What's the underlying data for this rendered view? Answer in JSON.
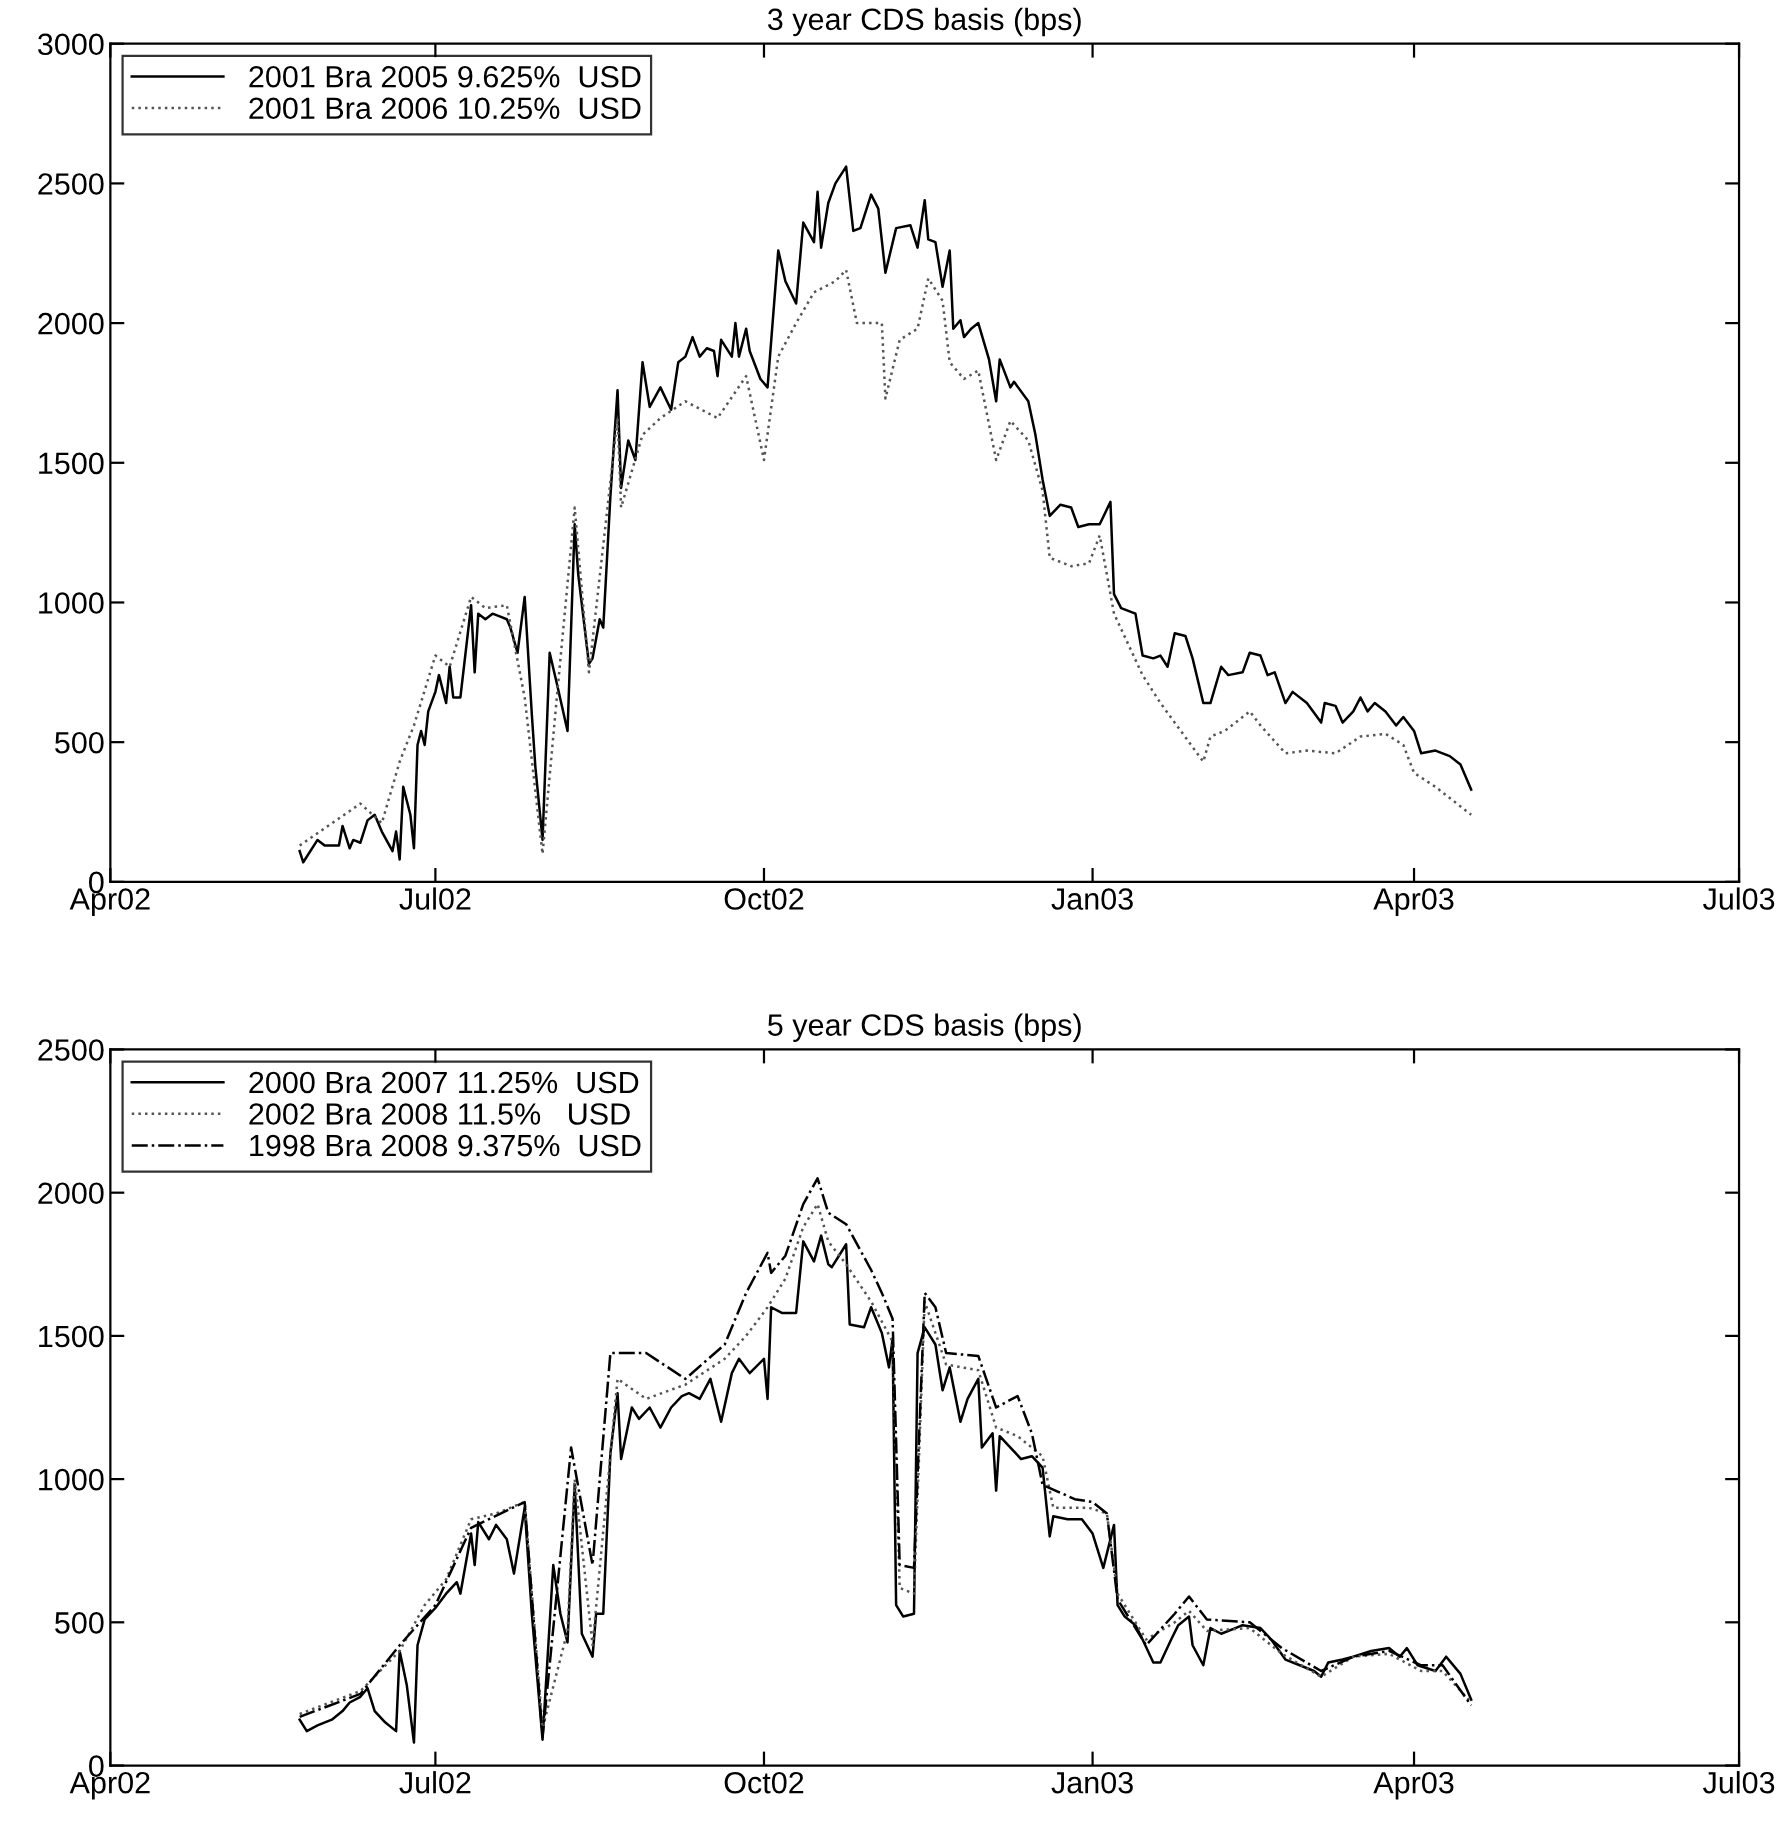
{
  "chart_data": [
    {
      "type": "line",
      "title": "3 year CDS basis (bps)",
      "legend": "top left",
      "grid": false,
      "xlim": [
        "2002-04-01",
        "2003-07-01"
      ],
      "xticks": [
        {
          "value": "2002-04-01",
          "label": "Apr02"
        },
        {
          "value": "2002-07-01",
          "label": "Jul02"
        },
        {
          "value": "2002-10-01",
          "label": "Oct02"
        },
        {
          "value": "2003-01-01",
          "label": "Jan03"
        },
        {
          "value": "2003-04-01",
          "label": "Apr03"
        },
        {
          "value": "2003-07-01",
          "label": "Jul03"
        }
      ],
      "ylim": [
        0,
        3000
      ],
      "yticks": [
        0,
        500,
        1000,
        1500,
        2000,
        2500,
        3000
      ],
      "series": [
        {
          "name": "2001 Bra 2005 9.625%  USD",
          "color": "#000000",
          "line_style": "solid",
          "x": [
            "2002-05-24",
            "2002-05-25",
            "2002-05-29",
            "2002-05-31",
            "2002-06-04",
            "2002-06-05",
            "2002-06-07",
            "2002-06-08",
            "2002-06-10",
            "2002-06-12",
            "2002-06-14",
            "2002-06-16",
            "2002-06-19",
            "2002-06-20",
            "2002-06-21",
            "2002-06-22",
            "2002-06-24",
            "2002-06-25",
            "2002-06-26",
            "2002-06-27",
            "2002-06-28",
            "2002-06-29",
            "2002-07-01",
            "2002-07-02",
            "2002-07-04",
            "2002-07-05",
            "2002-07-06",
            "2002-07-08",
            "2002-07-11",
            "2002-07-12",
            "2002-07-13",
            "2002-07-15",
            "2002-07-17",
            "2002-07-19",
            "2002-07-21",
            "2002-07-22",
            "2002-07-24",
            "2002-07-26",
            "2002-07-28",
            "2002-07-29",
            "2002-07-31",
            "2002-08-02",
            "2002-08-04",
            "2002-08-07",
            "2002-08-09",
            "2002-08-10",
            "2002-08-13",
            "2002-08-14",
            "2002-08-16",
            "2002-08-17",
            "2002-08-19",
            "2002-08-21",
            "2002-08-22",
            "2002-08-24",
            "2002-08-26",
            "2002-08-28",
            "2002-08-30",
            "2002-09-02",
            "2002-09-05",
            "2002-09-07",
            "2002-09-09",
            "2002-09-11",
            "2002-09-13",
            "2002-09-15",
            "2002-09-17",
            "2002-09-18",
            "2002-09-19",
            "2002-09-22",
            "2002-09-23",
            "2002-09-24",
            "2002-09-26",
            "2002-09-27",
            "2002-09-30",
            "2002-10-02",
            "2002-10-05",
            "2002-10-07",
            "2002-10-10",
            "2002-10-12",
            "2002-10-15",
            "2002-10-16",
            "2002-10-17",
            "2002-10-19",
            "2002-10-21",
            "2002-10-24",
            "2002-10-26",
            "2002-10-28",
            "2002-10-31",
            "2002-11-02",
            "2002-11-04",
            "2002-11-07",
            "2002-11-11",
            "2002-11-13",
            "2002-11-15",
            "2002-11-16",
            "2002-11-18",
            "2002-11-20",
            "2002-11-22",
            "2002-11-23",
            "2002-11-25",
            "2002-11-26",
            "2002-11-28",
            "2002-11-30",
            "2002-12-03",
            "2002-12-05",
            "2002-12-06",
            "2002-12-09",
            "2002-12-10",
            "2002-12-14",
            "2002-12-16",
            "2002-12-18",
            "2002-12-20",
            "2002-12-23",
            "2002-12-26",
            "2002-12-28",
            "2002-12-31",
            "2003-01-03",
            "2003-01-06",
            "2003-01-07",
            "2003-01-09",
            "2003-01-13",
            "2003-01-15",
            "2003-01-18",
            "2003-01-20",
            "2003-01-22",
            "2003-01-24",
            "2003-01-27",
            "2003-01-29",
            "2003-02-01",
            "2003-02-03",
            "2003-02-06",
            "2003-02-08",
            "2003-02-12",
            "2003-02-14",
            "2003-02-17",
            "2003-02-19",
            "2003-02-21",
            "2003-02-24",
            "2003-02-26",
            "2003-03-02",
            "2003-03-06",
            "2003-03-07",
            "2003-03-10",
            "2003-03-12",
            "2003-03-15",
            "2003-03-17",
            "2003-03-19",
            "2003-03-21",
            "2003-03-24",
            "2003-03-27",
            "2003-03-29",
            "2003-04-01",
            "2003-04-03",
            "2003-04-07",
            "2003-04-11",
            "2003-04-14",
            "2003-04-17"
          ],
          "values": [
            110,
            70,
            150,
            130,
            130,
            200,
            120,
            150,
            140,
            220,
            240,
            180,
            110,
            180,
            80,
            340,
            240,
            120,
            490,
            540,
            490,
            610,
            680,
            740,
            640,
            770,
            660,
            660,
            990,
            750,
            960,
            940,
            960,
            950,
            940,
            910,
            820,
            1020,
            600,
            410,
            150,
            820,
            710,
            540,
            1280,
            1100,
            780,
            800,
            940,
            910,
            1380,
            1760,
            1410,
            1580,
            1510,
            1860,
            1700,
            1770,
            1690,
            1860,
            1880,
            1950,
            1880,
            1910,
            1900,
            1810,
            1940,
            1880,
            2000,
            1880,
            1980,
            1900,
            1800,
            1770,
            2260,
            2150,
            2070,
            2360,
            2290,
            2470,
            2270,
            2430,
            2500,
            2560,
            2330,
            2340,
            2460,
            2410,
            2180,
            2340,
            2350,
            2270,
            2440,
            2300,
            2290,
            2130,
            2260,
            1980,
            2010,
            1950,
            1980,
            2000,
            1870,
            1720,
            1870,
            1770,
            1790,
            1720,
            1600,
            1440,
            1310,
            1350,
            1340,
            1270,
            1280,
            1280,
            1360,
            1030,
            980,
            960,
            810,
            800,
            810,
            770,
            890,
            880,
            800,
            640,
            640,
            770,
            740,
            750,
            820,
            810,
            740,
            750,
            640,
            680,
            640,
            570,
            640,
            630,
            570,
            610,
            660,
            610,
            640,
            610,
            560,
            590,
            540,
            460,
            470,
            450,
            420,
            330
          ]
        },
        {
          "name": "2001 Bra 2006 10.25%  USD",
          "color": "#555555",
          "line_style": "dotted",
          "x": [
            "2002-05-24",
            "2002-06-10",
            "2002-06-16",
            "2002-06-21",
            "2002-06-25",
            "2002-07-01",
            "2002-07-05",
            "2002-07-11",
            "2002-07-15",
            "2002-07-21",
            "2002-07-26",
            "2002-07-31",
            "2002-08-04",
            "2002-08-09",
            "2002-08-13",
            "2002-08-21",
            "2002-08-22",
            "2002-08-28",
            "2002-09-02",
            "2002-09-09",
            "2002-09-18",
            "2002-09-26",
            "2002-10-01",
            "2002-10-05",
            "2002-10-10",
            "2002-10-15",
            "2002-10-21",
            "2002-10-24",
            "2002-10-27",
            "2002-11-03",
            "2002-11-04",
            "2002-11-08",
            "2002-11-13",
            "2002-11-16",
            "2002-11-20",
            "2002-11-22",
            "2002-11-26",
            "2002-11-30",
            "2002-12-05",
            "2002-12-09",
            "2002-12-14",
            "2002-12-18",
            "2002-12-20",
            "2002-12-26",
            "2002-12-31",
            "2003-01-03",
            "2003-01-07",
            "2003-01-15",
            "2003-01-20",
            "2003-02-01",
            "2003-02-03",
            "2003-02-07",
            "2003-02-14",
            "2003-02-17",
            "2003-02-24",
            "2003-03-02",
            "2003-03-10",
            "2003-03-17",
            "2003-03-24",
            "2003-03-29",
            "2003-04-01",
            "2003-04-07",
            "2003-04-17"
          ],
          "values": [
            130,
            280,
            210,
            430,
            560,
            810,
            770,
            1020,
            980,
            990,
            660,
            100,
            660,
            1340,
            750,
            1660,
            1340,
            1600,
            1660,
            1720,
            1660,
            1810,
            1510,
            1880,
            2000,
            2110,
            2150,
            2190,
            2000,
            2000,
            1730,
            1940,
            1980,
            2160,
            2080,
            1860,
            1800,
            1830,
            1510,
            1650,
            1580,
            1400,
            1160,
            1130,
            1140,
            1240,
            960,
            740,
            640,
            430,
            520,
            540,
            610,
            560,
            460,
            470,
            460,
            520,
            530,
            490,
            390,
            340,
            240
          ]
        }
      ]
    },
    {
      "type": "line",
      "title": "5 year CDS basis (bps)",
      "legend": "top left",
      "grid": false,
      "xlim": [
        "2002-04-01",
        "2003-07-01"
      ],
      "xticks": [
        {
          "value": "2002-04-01",
          "label": "Apr02"
        },
        {
          "value": "2002-07-01",
          "label": "Jul02"
        },
        {
          "value": "2002-10-01",
          "label": "Oct02"
        },
        {
          "value": "2003-01-01",
          "label": "Jan03"
        },
        {
          "value": "2003-04-01",
          "label": "Apr03"
        },
        {
          "value": "2003-07-01",
          "label": "Jul03"
        }
      ],
      "ylim": [
        0,
        2500
      ],
      "yticks": [
        0,
        500,
        1000,
        1500,
        2000,
        2500
      ],
      "series": [
        {
          "name": "2000 Bra 2007 11.25%  USD",
          "color": "#000000",
          "line_style": "solid",
          "x": [
            "2002-05-24",
            "2002-05-26",
            "2002-05-29",
            "2002-06-02",
            "2002-06-05",
            "2002-06-07",
            "2002-06-10",
            "2002-06-12",
            "2002-06-14",
            "2002-06-17",
            "2002-06-20",
            "2002-06-21",
            "2002-06-23",
            "2002-06-25",
            "2002-06-26",
            "2002-06-28",
            "2002-07-01",
            "2002-07-04",
            "2002-07-07",
            "2002-07-08",
            "2002-07-11",
            "2002-07-12",
            "2002-07-13",
            "2002-07-16",
            "2002-07-18",
            "2002-07-21",
            "2002-07-23",
            "2002-07-26",
            "2002-07-28",
            "2002-07-31",
            "2002-08-03",
            "2002-08-05",
            "2002-08-07",
            "2002-08-09",
            "2002-08-11",
            "2002-08-14",
            "2002-08-15",
            "2002-08-17",
            "2002-08-19",
            "2002-08-21",
            "2002-08-22",
            "2002-08-25",
            "2002-08-27",
            "2002-08-30",
            "2002-09-02",
            "2002-09-05",
            "2002-09-08",
            "2002-09-10",
            "2002-09-13",
            "2002-09-16",
            "2002-09-19",
            "2002-09-22",
            "2002-09-24",
            "2002-09-27",
            "2002-10-01",
            "2002-10-02",
            "2002-10-03",
            "2002-10-06",
            "2002-10-10",
            "2002-10-12",
            "2002-10-15",
            "2002-10-17",
            "2002-10-19",
            "2002-10-20",
            "2002-10-24",
            "2002-10-25",
            "2002-10-29",
            "2002-10-31",
            "2002-11-03",
            "2002-11-05",
            "2002-11-06",
            "2002-11-07",
            "2002-11-09",
            "2002-11-12",
            "2002-11-13",
            "2002-11-15",
            "2002-11-18",
            "2002-11-20",
            "2002-11-22",
            "2002-11-25",
            "2002-11-27",
            "2002-11-30",
            "2002-12-01",
            "2002-12-04",
            "2002-12-05",
            "2002-12-06",
            "2002-12-09",
            "2002-12-12",
            "2002-12-15",
            "2002-12-18",
            "2002-12-20",
            "2002-12-21",
            "2002-12-25",
            "2002-12-29",
            "2003-01-01",
            "2003-01-04",
            "2003-01-07",
            "2003-01-08",
            "2003-01-10",
            "2003-01-13",
            "2003-01-15",
            "2003-01-18",
            "2003-01-20",
            "2003-01-23",
            "2003-01-25",
            "2003-01-28",
            "2003-01-29",
            "2003-02-01",
            "2003-02-03",
            "2003-02-06",
            "2003-02-10",
            "2003-02-12",
            "2003-02-17",
            "2003-02-20",
            "2003-02-24",
            "2003-02-28",
            "2003-03-04",
            "2003-03-06",
            "2003-03-08",
            "2003-03-12",
            "2003-03-15",
            "2003-03-20",
            "2003-03-25",
            "2003-03-28",
            "2003-03-30",
            "2003-04-02",
            "2003-04-07",
            "2003-04-10",
            "2003-04-14",
            "2003-04-17"
          ],
          "values": [
            160,
            120,
            140,
            160,
            190,
            220,
            240,
            270,
            190,
            150,
            120,
            400,
            280,
            80,
            420,
            510,
            550,
            600,
            640,
            600,
            810,
            700,
            850,
            790,
            840,
            790,
            670,
            900,
            530,
            90,
            700,
            530,
            430,
            980,
            460,
            380,
            530,
            530,
            1090,
            1300,
            1070,
            1250,
            1210,
            1250,
            1180,
            1250,
            1290,
            1300,
            1280,
            1350,
            1200,
            1370,
            1420,
            1370,
            1420,
            1280,
            1600,
            1580,
            1580,
            1830,
            1760,
            1850,
            1750,
            1740,
            1820,
            1540,
            1530,
            1600,
            1510,
            1390,
            1490,
            560,
            520,
            530,
            1440,
            1530,
            1470,
            1310,
            1390,
            1200,
            1280,
            1350,
            1110,
            1160,
            960,
            1150,
            1110,
            1070,
            1080,
            1040,
            800,
            870,
            860,
            860,
            810,
            690,
            840,
            560,
            520,
            490,
            440,
            360,
            360,
            440,
            490,
            520,
            420,
            350,
            480,
            460,
            480,
            490,
            480,
            440,
            370,
            350,
            330,
            310,
            360,
            370,
            380,
            400,
            410,
            380,
            410,
            350,
            330,
            380,
            320,
            230
          ]
        },
        {
          "name": "2002 Bra 2008 11.5%   USD",
          "color": "#555555",
          "line_style": "dotted",
          "x": [
            "2002-05-24",
            "2002-06-10",
            "2002-06-21",
            "2002-06-28",
            "2002-07-04",
            "2002-07-11",
            "2002-07-18",
            "2002-07-26",
            "2002-07-31",
            "2002-08-07",
            "2002-08-09",
            "2002-08-14",
            "2002-08-21",
            "2002-08-29",
            "2002-09-09",
            "2002-09-20",
            "2002-09-26",
            "2002-10-02",
            "2002-10-07",
            "2002-10-12",
            "2002-10-16",
            "2002-10-19",
            "2002-10-24",
            "2002-10-31",
            "2002-11-06",
            "2002-11-08",
            "2002-11-12",
            "2002-11-15",
            "2002-11-21",
            "2002-11-30",
            "2002-12-05",
            "2002-12-11",
            "2002-12-18",
            "2002-12-21",
            "2002-12-31",
            "2003-01-05",
            "2003-01-08",
            "2003-01-16",
            "2003-01-24",
            "2003-01-28",
            "2003-02-02",
            "2003-02-14",
            "2003-02-23",
            "2003-03-06",
            "2003-03-15",
            "2003-03-25",
            "2003-04-03",
            "2003-04-09",
            "2003-04-17"
          ],
          "values": [
            180,
            260,
            400,
            560,
            650,
            860,
            880,
            920,
            130,
            470,
            1000,
            420,
            1350,
            1280,
            1330,
            1420,
            1500,
            1600,
            1700,
            1880,
            1960,
            1830,
            1750,
            1620,
            1480,
            620,
            600,
            1620,
            1400,
            1380,
            1180,
            1150,
            1080,
            900,
            900,
            880,
            600,
            440,
            500,
            540,
            470,
            480,
            390,
            310,
            380,
            390,
            330,
            330,
            220
          ]
        },
        {
          "name": "1998 Bra 2008 9.375%  USD",
          "color": "#000000",
          "line_style": "dashdot",
          "x": [
            "2002-05-24",
            "2002-06-10",
            "2002-06-21",
            "2002-07-01",
            "2002-07-11",
            "2002-07-26",
            "2002-07-31",
            "2002-08-08",
            "2002-08-14",
            "2002-08-19",
            "2002-08-29",
            "2002-09-09",
            "2002-09-20",
            "2002-09-26",
            "2002-10-02",
            "2002-10-03",
            "2002-10-07",
            "2002-10-12",
            "2002-10-16",
            "2002-10-19",
            "2002-10-24",
            "2002-10-31",
            "2002-11-03",
            "2002-11-06",
            "2002-11-08",
            "2002-11-12",
            "2002-11-15",
            "2002-11-18",
            "2002-11-21",
            "2002-11-30",
            "2002-12-05",
            "2002-12-11",
            "2002-12-15",
            "2002-12-18",
            "2002-12-27",
            "2003-01-01",
            "2003-01-05",
            "2003-01-08",
            "2003-01-16",
            "2003-01-24",
            "2003-01-28",
            "2003-02-02",
            "2003-02-14",
            "2003-02-23",
            "2003-03-06",
            "2003-03-15",
            "2003-03-25",
            "2003-04-03",
            "2003-04-09",
            "2003-04-17"
          ],
          "values": [
            170,
            250,
            420,
            560,
            830,
            920,
            100,
            1110,
            700,
            1440,
            1440,
            1350,
            1470,
            1650,
            1790,
            1720,
            1780,
            1960,
            2050,
            1930,
            1890,
            1730,
            1650,
            1560,
            700,
            690,
            1650,
            1600,
            1440,
            1430,
            1250,
            1290,
            1160,
            980,
            930,
            920,
            880,
            580,
            420,
            530,
            590,
            510,
            500,
            410,
            330,
            380,
            400,
            350,
            350,
            210
          ]
        }
      ]
    }
  ]
}
